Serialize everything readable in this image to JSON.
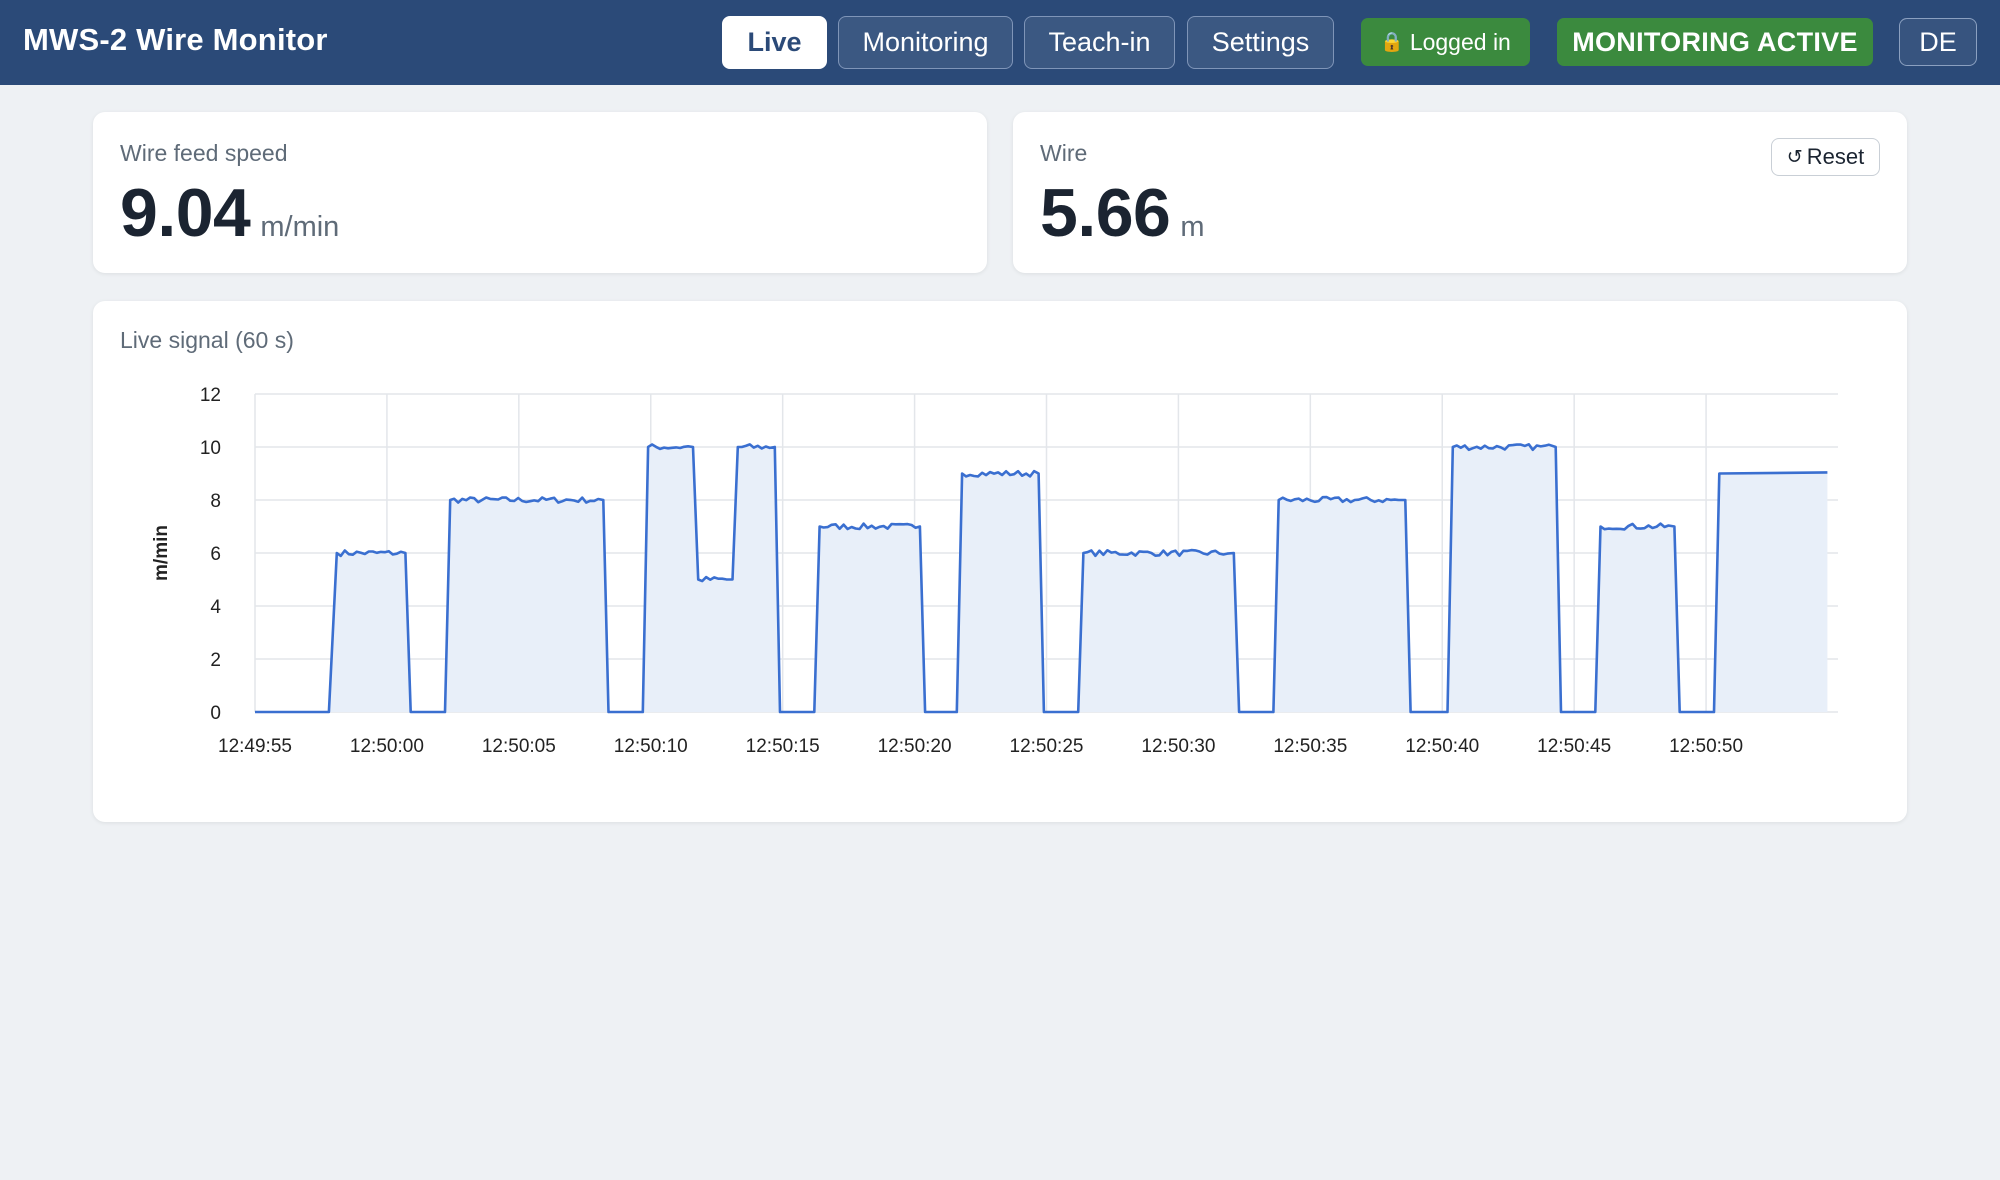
{
  "app": {
    "title": "MWS-2 Wire Monitor"
  },
  "nav": [
    {
      "label": "Live",
      "active": true
    },
    {
      "label": "Monitoring",
      "active": false
    },
    {
      "label": "Teach-in",
      "active": false
    },
    {
      "label": "Settings",
      "active": false
    }
  ],
  "status": {
    "login_icon": "lock-icon",
    "login_label": "Logged in",
    "monitoring_label": "MONITORING ACTIVE",
    "language_label": "DE",
    "active_color": "#3b8a3e"
  },
  "metrics": {
    "speed": {
      "label": "Wire feed speed",
      "value": "9.04",
      "unit": "m/min"
    },
    "wire": {
      "label": "Wire",
      "value": "5.66",
      "unit": "m",
      "reset_label": "Reset",
      "reset_icon": "reset-icon"
    }
  },
  "chart": {
    "title": "Live signal (60 s)"
  },
  "chart_data": {
    "type": "area",
    "title": "",
    "xlabel": "",
    "ylabel": "m/min",
    "ylim": [
      0,
      12
    ],
    "yticks": [
      0,
      2,
      4,
      6,
      8,
      10,
      12
    ],
    "xticks": [
      "12:49:55",
      "12:50:00",
      "12:50:05",
      "12:50:10",
      "12:50:15",
      "12:50:20",
      "12:50:25",
      "12:50:30",
      "12:50:35",
      "12:50:40",
      "12:50:45",
      "12:50:50"
    ],
    "grid": true,
    "line_color": "#3a6fd0",
    "fill_color": "#e8eff9",
    "series": [
      {
        "x": [
          "12:49:55",
          "12:49:57.8",
          "12:49:58.1",
          "12:50:00.7",
          "12:50:00.9",
          "12:50:02.2",
          "12:50:02.4",
          "12:50:08.2",
          "12:50:08.4",
          "12:50:09.7",
          "12:50:09.9",
          "12:50:11.6",
          "12:50:11.8",
          "12:50:13.1",
          "12:50:13.3",
          "12:50:14.7",
          "12:50:14.9",
          "12:50:16.2",
          "12:50:16.4",
          "12:50:20.2",
          "12:50:20.4",
          "12:50:21.6",
          "12:50:21.8",
          "12:50:24.7",
          "12:50:24.9",
          "12:50:26.2",
          "12:50:26.4",
          "12:50:32.1",
          "12:50:32.3",
          "12:50:33.6",
          "12:50:33.8",
          "12:50:38.6",
          "12:50:38.8",
          "12:50:40.2",
          "12:50:40.4",
          "12:50:44.3",
          "12:50:44.5",
          "12:50:45.8",
          "12:50:46.0",
          "12:50:48.8",
          "12:50:49.0",
          "12:50:50.3",
          "12:50:50.5",
          "12:50:54.6"
        ],
        "y": [
          0,
          0,
          6.0,
          6.0,
          0,
          0,
          8.0,
          8.0,
          0,
          0,
          10.0,
          10.0,
          5.0,
          5.0,
          10.0,
          10.0,
          0,
          0,
          7.0,
          7.0,
          0,
          0,
          9.0,
          9.0,
          0,
          0,
          6.0,
          6.0,
          0,
          0,
          8.0,
          8.0,
          0,
          0,
          10.0,
          10.0,
          0,
          0,
          7.0,
          7.0,
          0,
          0,
          9.0,
          9.04
        ]
      }
    ]
  }
}
